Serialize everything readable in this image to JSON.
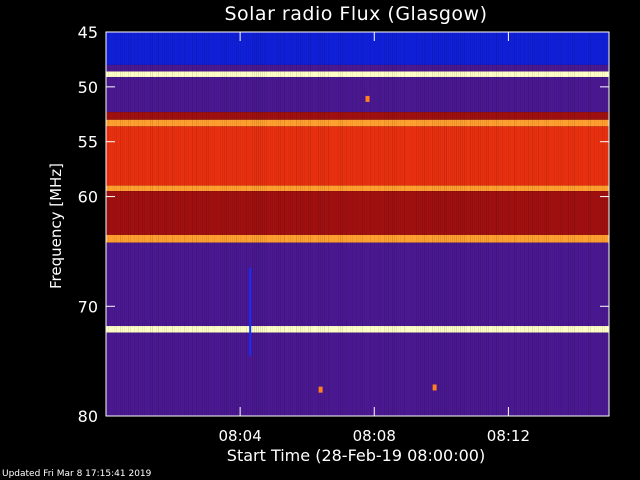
{
  "chart_data": {
    "type": "heatmap",
    "title": "Solar radio Flux (Glasgow)",
    "xlabel": "Start Time (28-Feb-19 08:00:00)",
    "ylabel": "Frequency [MHz]",
    "x_unit": "minutes after 08:00:00",
    "xlim": [
      0,
      15
    ],
    "x_ticks": [
      {
        "value": 4,
        "label": "08:04"
      },
      {
        "value": 8,
        "label": "08:08"
      },
      {
        "value": 12,
        "label": "08:12"
      }
    ],
    "ylim": [
      45,
      80
    ],
    "y_reversed": true,
    "y_ticks": [
      {
        "value": 45,
        "label": "45"
      },
      {
        "value": 50,
        "label": "50"
      },
      {
        "value": 55,
        "label": "55"
      },
      {
        "value": 60,
        "label": "60"
      },
      {
        "value": 70,
        "label": "70"
      },
      {
        "value": 80,
        "label": "80"
      }
    ],
    "colors": {
      "low": "#1020d8",
      "mid_low": "#4a1890",
      "mid": "#a01010",
      "mid_high": "#e83010",
      "high": "#ffa030",
      "peak": "#ffffc8"
    },
    "frequency_bands": [
      {
        "from": 45.0,
        "to": 48.0,
        "level": "low"
      },
      {
        "from": 48.0,
        "to": 48.6,
        "level": "mid_low"
      },
      {
        "from": 48.6,
        "to": 49.1,
        "level": "peak"
      },
      {
        "from": 49.1,
        "to": 52.3,
        "level": "mid_low"
      },
      {
        "from": 52.3,
        "to": 53.0,
        "level": "mid"
      },
      {
        "from": 53.0,
        "to": 53.6,
        "level": "high"
      },
      {
        "from": 53.6,
        "to": 59.0,
        "level": "mid_high"
      },
      {
        "from": 59.0,
        "to": 59.5,
        "level": "high"
      },
      {
        "from": 59.5,
        "to": 63.5,
        "level": "mid"
      },
      {
        "from": 63.5,
        "to": 64.2,
        "level": "high"
      },
      {
        "from": 64.2,
        "to": 71.8,
        "level": "mid_low"
      },
      {
        "from": 71.8,
        "to": 72.4,
        "level": "peak"
      },
      {
        "from": 72.4,
        "to": 80.0,
        "level": "mid_low"
      }
    ],
    "events": [
      {
        "type": "vertical_streak",
        "time": 4.3,
        "from": 66.5,
        "to": 74.5
      },
      {
        "type": "spot",
        "time": 7.8,
        "freq": 51.1
      },
      {
        "type": "spot",
        "time": 6.4,
        "freq": 77.6
      },
      {
        "type": "spot",
        "time": 9.8,
        "freq": 77.4
      }
    ]
  },
  "footer": {
    "updated": "Updated Fri Mar  8 17:15:41 2019"
  }
}
